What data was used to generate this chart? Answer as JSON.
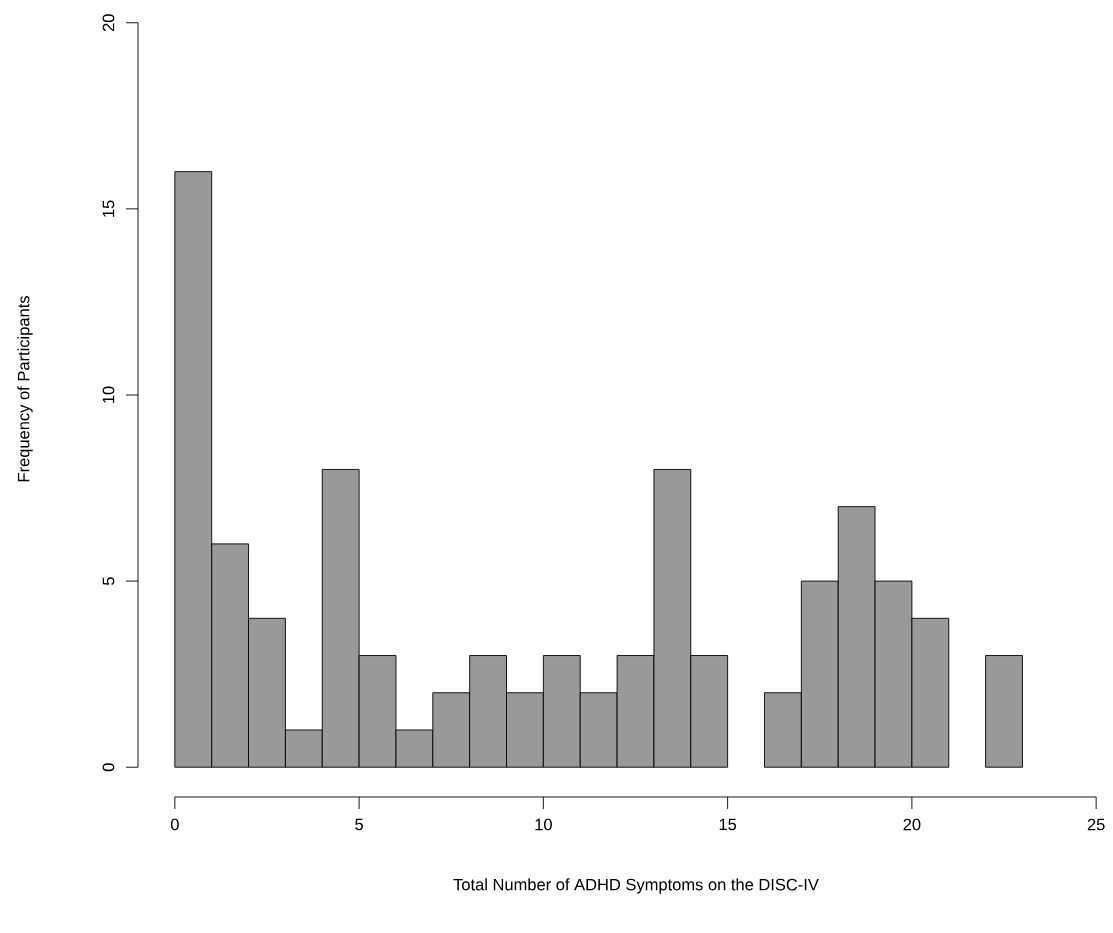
{
  "chart_data": {
    "type": "histogram",
    "xlabel": "Total Number of ADHD Symptoms on the DISC-IV",
    "ylabel": "Frequency of Participants",
    "bins": [
      0,
      1,
      2,
      3,
      4,
      5,
      6,
      7,
      8,
      9,
      10,
      11,
      12,
      13,
      14,
      15,
      16,
      17,
      18,
      19,
      20,
      21,
      22,
      23
    ],
    "values": [
      16,
      6,
      4,
      1,
      8,
      3,
      1,
      2,
      3,
      2,
      3,
      2,
      3,
      8,
      3,
      0,
      2,
      5,
      7,
      5,
      4,
      0,
      3
    ],
    "color": "#999999",
    "xlim": [
      0,
      25
    ],
    "ylim": [
      0,
      20
    ],
    "xticks": [
      0,
      5,
      10,
      15,
      20,
      25
    ],
    "yticks": [
      0,
      5,
      10,
      15,
      20
    ]
  }
}
